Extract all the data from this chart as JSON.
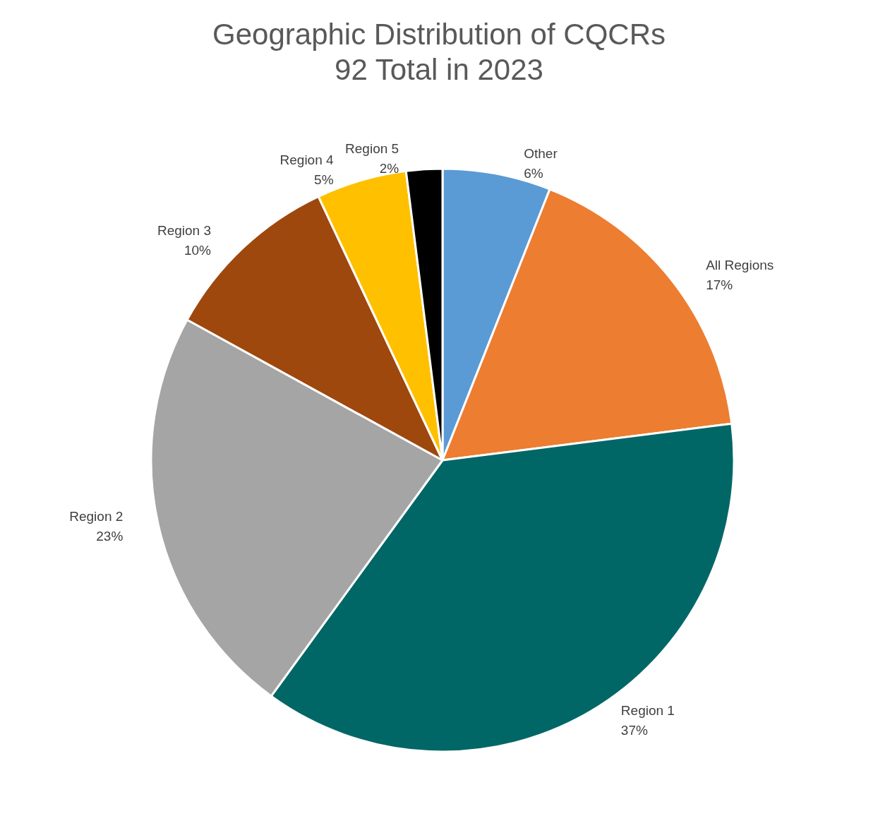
{
  "chart_data": {
    "type": "pie",
    "title": "Geographic Distribution of CQCRs",
    "subtitle": "92 Total in 2023",
    "categories": [
      "Other",
      "All Regions",
      "Region 1",
      "Region 2",
      "Region 3",
      "Region 4",
      "Region 5"
    ],
    "values": [
      6,
      17,
      37,
      23,
      10,
      5,
      2
    ],
    "value_labels": [
      "6%",
      "17%",
      "37%",
      "23%",
      "10%",
      "5%",
      "2%"
    ],
    "colors": [
      "#5b9bd5",
      "#ed7d31",
      "#016766",
      "#a5a5a5",
      "#9e480e",
      "#ffc000",
      "#000000"
    ],
    "legend": false
  }
}
